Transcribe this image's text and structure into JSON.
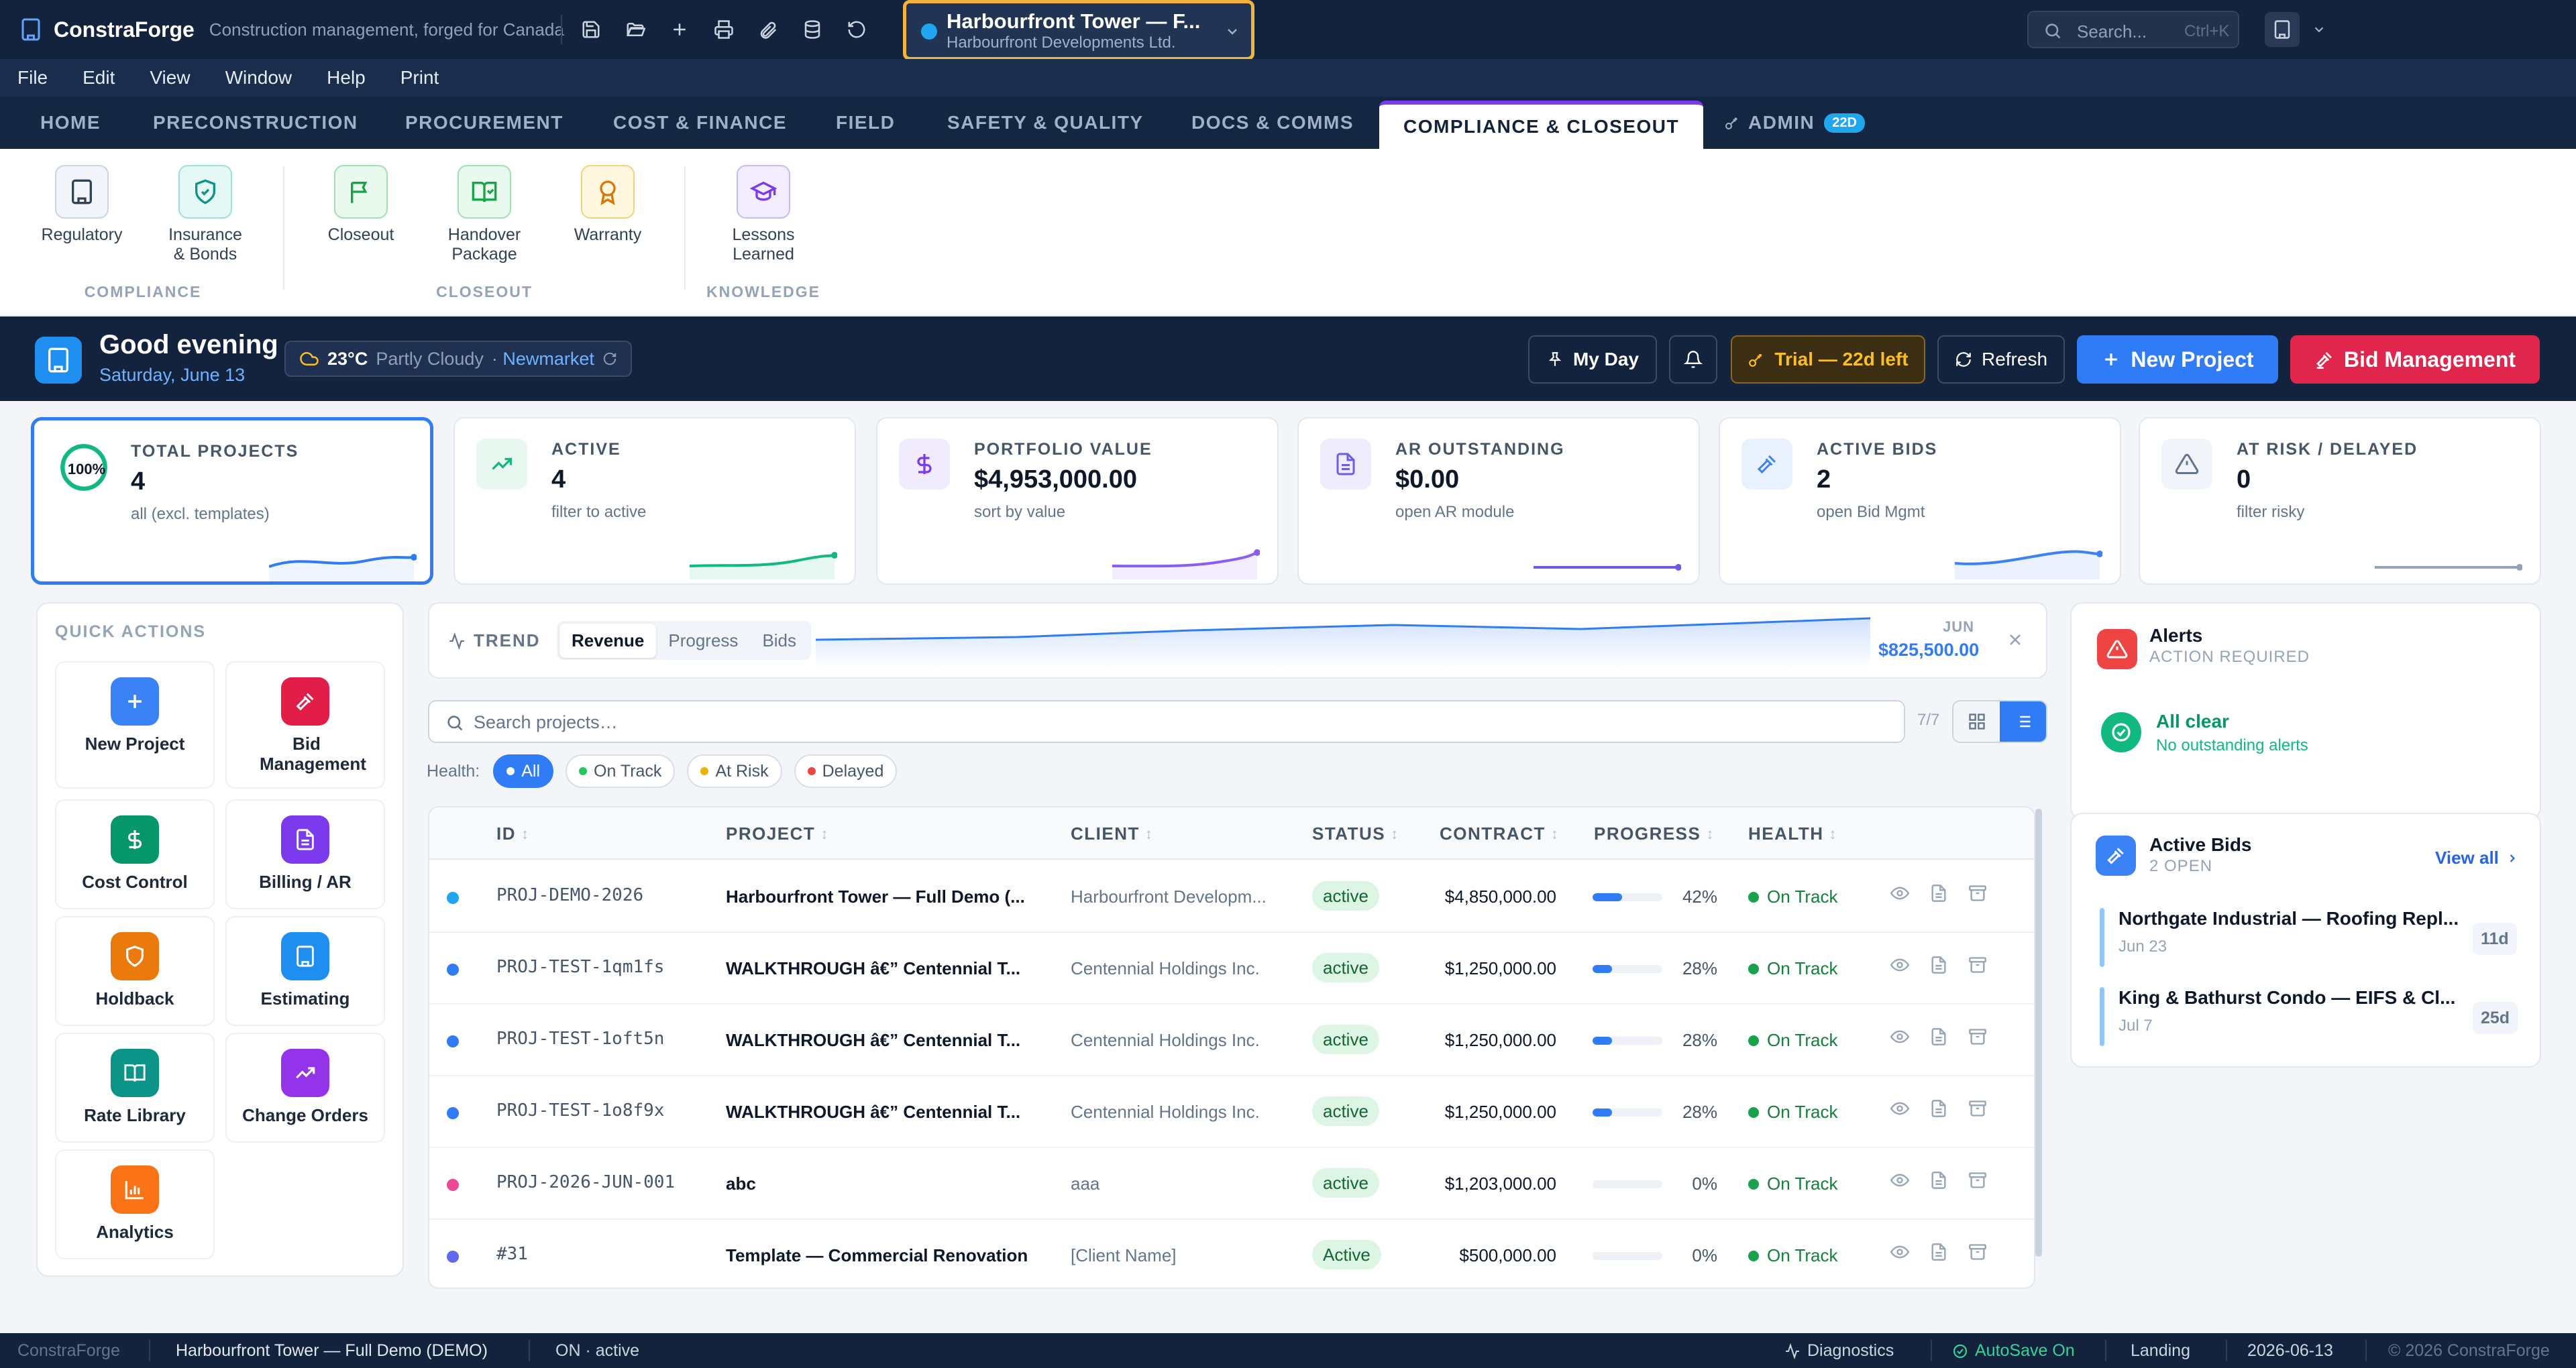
{
  "app": {
    "name": "ConstraForge",
    "tagline": "Construction management, forged for Canada"
  },
  "project_selector": {
    "title": "Harbourfront Tower — F...",
    "subtitle": "Harbourfront Developments Ltd."
  },
  "global_search": {
    "placeholder": "Search...",
    "shortcut": "Ctrl+K"
  },
  "menu": [
    "File",
    "Edit",
    "View",
    "Window",
    "Help",
    "Print"
  ],
  "tabs": [
    {
      "label": "HOME"
    },
    {
      "label": "PRECONSTRUCTION"
    },
    {
      "label": "PROCUREMENT"
    },
    {
      "label": "COST & FINANCE"
    },
    {
      "label": "FIELD"
    },
    {
      "label": "SAFETY & QUALITY"
    },
    {
      "label": "DOCS & COMMS"
    },
    {
      "label": "COMPLIANCE & CLOSEOUT",
      "active": true
    },
    {
      "label": "ADMIN",
      "badge": "22D"
    }
  ],
  "ribbon": {
    "buttons": [
      {
        "label": "Regulatory",
        "icon": "building-icon"
      },
      {
        "label": "Insurance & Bonds",
        "icon": "shield-check-icon"
      },
      {
        "label": "Closeout",
        "icon": "flag-icon"
      },
      {
        "label": "Handover Package",
        "icon": "book-check-icon"
      },
      {
        "label": "Warranty",
        "icon": "award-icon"
      },
      {
        "label": "Lessons Learned",
        "icon": "graduation-cap-icon"
      }
    ],
    "groups": [
      "COMPLIANCE",
      "CLOSEOUT",
      "KNOWLEDGE"
    ]
  },
  "greeting": {
    "title": "Good evening",
    "date": "Saturday, June 13",
    "weather": {
      "temp": "23°C",
      "condition": "Partly Cloudy",
      "location": "· Newmarket"
    },
    "buttons": {
      "my_day": "My Day",
      "trial": "Trial — 22d left",
      "refresh": "Refresh",
      "new_project": "New Project",
      "bid_management": "Bid Management"
    }
  },
  "kpis": [
    {
      "title": "TOTAL PROJECTS",
      "value": "4",
      "sub": "all (excl. templates)",
      "ring": "100%",
      "color": "#2f7cf6"
    },
    {
      "title": "ACTIVE",
      "value": "4",
      "sub": "filter to active",
      "color": "#10b981"
    },
    {
      "title": "PORTFOLIO VALUE",
      "value": "$4,953,000.00",
      "sub": "sort by value",
      "color": "#8b5cf6"
    },
    {
      "title": "AR OUTSTANDING",
      "value": "$0.00",
      "sub": "open AR module",
      "color": "#6d5ce8"
    },
    {
      "title": "ACTIVE BIDS",
      "value": "2",
      "sub": "open Bid Mgmt",
      "color": "#3b82f6"
    },
    {
      "title": "AT RISK / DELAYED",
      "value": "0",
      "sub": "filter risky",
      "color": "#94a3b8"
    }
  ],
  "quick_actions": {
    "title": "QUICK ACTIONS",
    "items": [
      {
        "label": "New Project",
        "icon": "plus-icon",
        "color": "#3b82f6"
      },
      {
        "label": "Bid Management",
        "icon": "gavel-icon",
        "color": "#e11d48"
      },
      {
        "label": "Cost Control",
        "icon": "dollar-icon",
        "color": "#059669"
      },
      {
        "label": "Billing / AR",
        "icon": "document-icon",
        "color": "#7c3aed"
      },
      {
        "label": "Holdback",
        "icon": "shield-icon",
        "color": "#ea7a0c"
      },
      {
        "label": "Estimating",
        "icon": "building-icon",
        "color": "#1e8ef0"
      },
      {
        "label": "Rate Library",
        "icon": "book-icon",
        "color": "#0d9488"
      },
      {
        "label": "Change Orders",
        "icon": "trending-up-icon",
        "color": "#9333ea"
      },
      {
        "label": "Analytics",
        "icon": "bar-chart-icon",
        "color": "#f97316"
      }
    ]
  },
  "trend": {
    "label": "TREND",
    "tabs": [
      "Revenue",
      "Progress",
      "Bids"
    ],
    "active_tab": "Revenue",
    "month": "JUN",
    "value": "$825,500.00"
  },
  "project_search": {
    "placeholder": "Search projects…",
    "count": "7/7"
  },
  "filters": {
    "label": "Health:",
    "chips": [
      {
        "label": "All",
        "dot": "#ffffff",
        "active": true
      },
      {
        "label": "On Track",
        "dot": "#22c55e"
      },
      {
        "label": "At Risk",
        "dot": "#eab308"
      },
      {
        "label": "Delayed",
        "dot": "#ef4444"
      }
    ]
  },
  "table": {
    "columns": [
      "ID",
      "PROJECT",
      "CLIENT",
      "STATUS",
      "CONTRACT",
      "PROGRESS",
      "HEALTH"
    ],
    "rows": [
      {
        "dot": "#1ea7f0",
        "id": "PROJ-DEMO-2026",
        "project": "Harbourfront Tower — Full Demo (...",
        "client": "Harbourfront Developm...",
        "status": "active",
        "contract": "$4,850,000.00",
        "progress": 42,
        "progress_label": "42%",
        "health": "On Track"
      },
      {
        "dot": "#2f7cf6",
        "id": "PROJ-TEST-1qm1fs",
        "project": "WALKTHROUGH â€” Centennial T...",
        "client": "Centennial Holdings Inc.",
        "status": "active",
        "contract": "$1,250,000.00",
        "progress": 28,
        "progress_label": "28%",
        "health": "On Track"
      },
      {
        "dot": "#2f7cf6",
        "id": "PROJ-TEST-1oft5n",
        "project": "WALKTHROUGH â€” Centennial T...",
        "client": "Centennial Holdings Inc.",
        "status": "active",
        "contract": "$1,250,000.00",
        "progress": 28,
        "progress_label": "28%",
        "health": "On Track"
      },
      {
        "dot": "#2f7cf6",
        "id": "PROJ-TEST-1o8f9x",
        "project": "WALKTHROUGH â€” Centennial T...",
        "client": "Centennial Holdings Inc.",
        "status": "active",
        "contract": "$1,250,000.00",
        "progress": 28,
        "progress_label": "28%",
        "health": "On Track"
      },
      {
        "dot": "#ec4899",
        "id": "PROJ-2026-JUN-001",
        "project": "abc",
        "client": "aaa",
        "status": "active",
        "contract": "$1,203,000.00",
        "progress": 0,
        "progress_label": "0%",
        "health": "On Track"
      },
      {
        "dot": "#6366f1",
        "id": "#31",
        "project": "Template — Commercial Renovation",
        "client": "[Client Name]",
        "status": "Active",
        "contract": "$500,000.00",
        "progress": 0,
        "progress_label": "0%",
        "health": "On Track"
      }
    ]
  },
  "alerts": {
    "title": "Alerts",
    "subtitle": "ACTION REQUIRED",
    "status_title": "All clear",
    "status_sub": "No outstanding alerts"
  },
  "active_bids": {
    "title": "Active Bids",
    "subtitle": "2 OPEN",
    "view_all": "View all",
    "items": [
      {
        "title": "Northgate Industrial — Roofing Repl...",
        "date": "Jun 23",
        "days": "11d"
      },
      {
        "title": "King & Bathurst Condo — EIFS & Cl...",
        "date": "Jul 7",
        "days": "25d"
      }
    ]
  },
  "statusbar": {
    "app": "ConstraForge",
    "project": "Harbourfront Tower — Full Demo (DEMO)",
    "province": "ON · active",
    "diagnostics": "Diagnostics",
    "autosave": "AutoSave On",
    "view": "Landing",
    "date": "2026-06-13",
    "copyright": "© 2026 ConstraForge"
  }
}
